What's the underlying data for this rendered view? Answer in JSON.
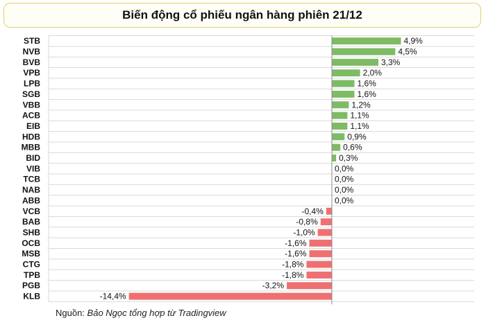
{
  "chart_data": {
    "type": "bar",
    "orientation": "horizontal",
    "title": "Biến động cổ phiếu ngân hàng phiên 21/12",
    "categories": [
      "STB",
      "NVB",
      "BVB",
      "VPB",
      "LPB",
      "SGB",
      "VBB",
      "ACB",
      "EIB",
      "HDB",
      "MBB",
      "BID",
      "VIB",
      "TCB",
      "NAB",
      "ABB",
      "VCB",
      "BAB",
      "SHB",
      "OCB",
      "MSB",
      "CTG",
      "TPB",
      "PGB",
      "KLB"
    ],
    "values": [
      4.9,
      4.5,
      3.3,
      2.0,
      1.6,
      1.6,
      1.2,
      1.1,
      1.1,
      0.9,
      0.6,
      0.3,
      0.0,
      0.0,
      0.0,
      0.0,
      -0.4,
      -0.8,
      -1.0,
      -1.6,
      -1.6,
      -1.8,
      -1.8,
      -3.2,
      -14.4
    ],
    "labels": [
      "4,9%",
      "4,5%",
      "3,3%",
      "2,0%",
      "1,6%",
      "1,6%",
      "1,2%",
      "1,1%",
      "1,1%",
      "0,9%",
      "0,6%",
      "0,3%",
      "0,0%",
      "0,0%",
      "0,0%",
      "0,0%",
      "-0,4%",
      "-0,8%",
      "-1,0%",
      "-1,6%",
      "-1,6%",
      "-1,8%",
      "-1,8%",
      "-3,2%",
      "-14,4%"
    ],
    "xlim": [
      -20,
      5
    ],
    "unit": "%",
    "grid": true,
    "legend": "none",
    "xlabel": "",
    "ylabel": ""
  },
  "source": {
    "prefix": "Nguồn: ",
    "author": "Bảo Ngọc tổng hợp từ Tradingview"
  },
  "colors": {
    "positive": "#7dbb64",
    "negative": "#ee7070",
    "grid": "#d9d9d9",
    "axis": "#8c8c8c",
    "title_border": "#e7cf6a"
  }
}
